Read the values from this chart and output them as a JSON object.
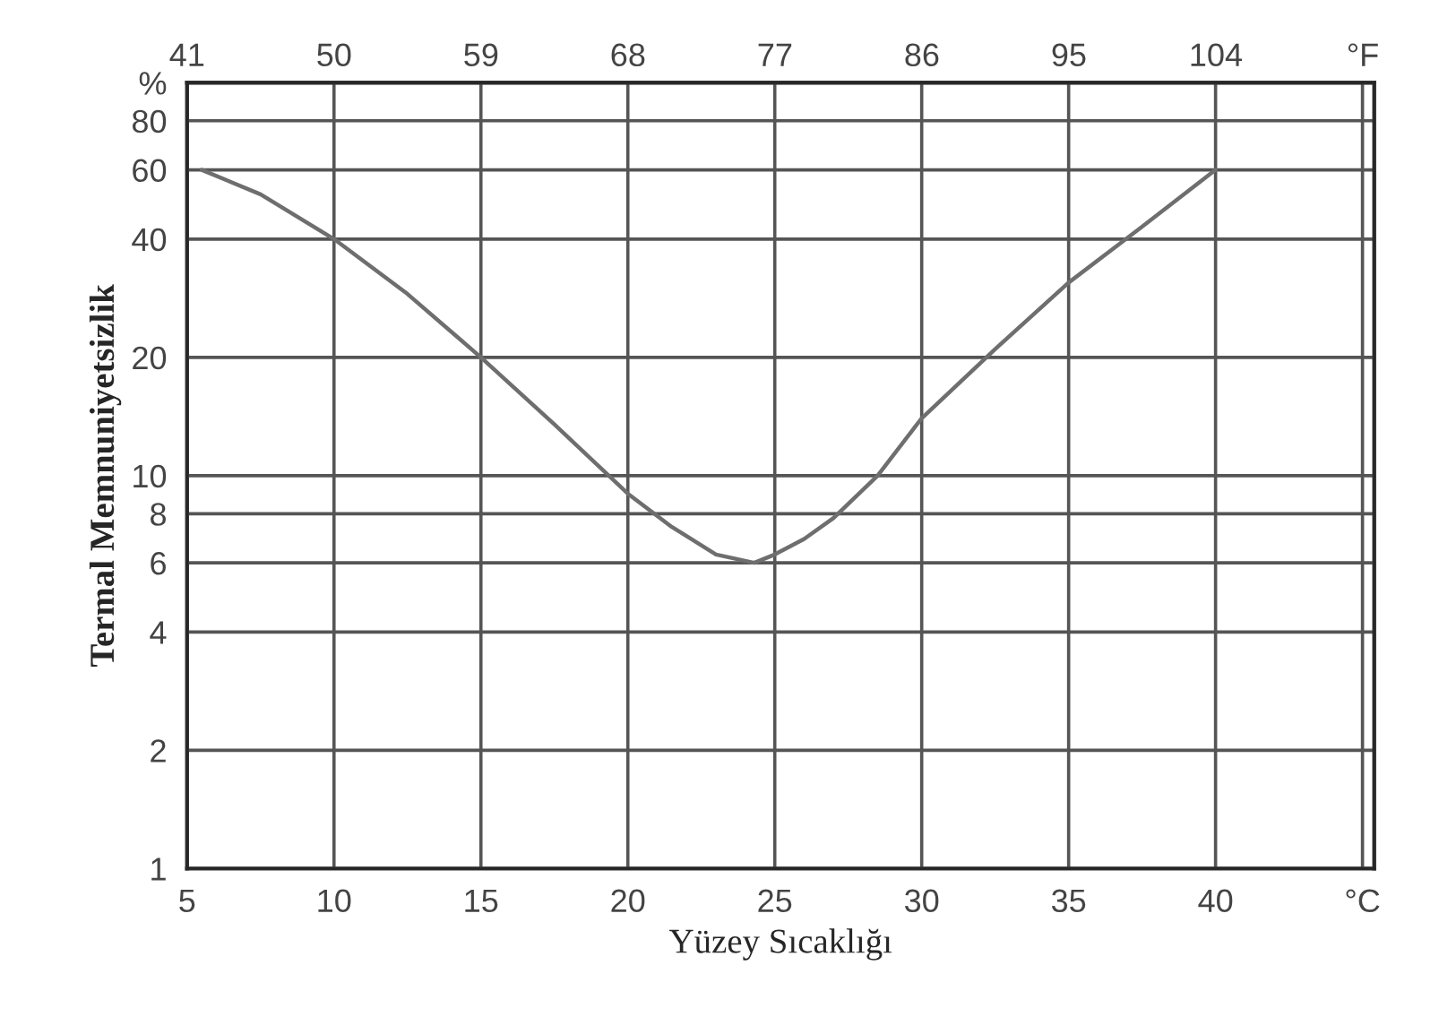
{
  "chart_data": {
    "type": "line",
    "xlabel": "Yüzey Sıcaklığı",
    "ylabel": "Termal Memnuniyetsizlik",
    "x": [
      5.5,
      7.5,
      10,
      12.5,
      15,
      17.5,
      20,
      21.5,
      23,
      24.3,
      25,
      26,
      27,
      28.5,
      30,
      32.5,
      35,
      37.5,
      40
    ],
    "series": [
      {
        "color": "#6e6e6e",
        "values": [
          60,
          52,
          40,
          29,
          20,
          13.5,
          9,
          7.4,
          6.3,
          6,
          6.3,
          6.9,
          7.8,
          10,
          14,
          21,
          31,
          43,
          60
        ]
      }
    ],
    "xlim": [
      5,
      45.4
    ],
    "xticks": [
      5,
      10,
      15,
      20,
      25,
      30,
      35,
      40,
      {
        "value": 45,
        "label": "°C"
      }
    ],
    "x2lim": [
      41,
      113.7
    ],
    "x2ticks": [
      41,
      50,
      59,
      68,
      77,
      86,
      95,
      104,
      {
        "value": 113,
        "label": "°F"
      }
    ],
    "log": "y",
    "ylim": [
      1,
      100
    ],
    "yticks": [
      1,
      2,
      4,
      6,
      8,
      10,
      20,
      40,
      60,
      80,
      {
        "value": 100,
        "label": "%"
      }
    ],
    "grid": true,
    "marker": "none",
    "line_style": "solid"
  }
}
